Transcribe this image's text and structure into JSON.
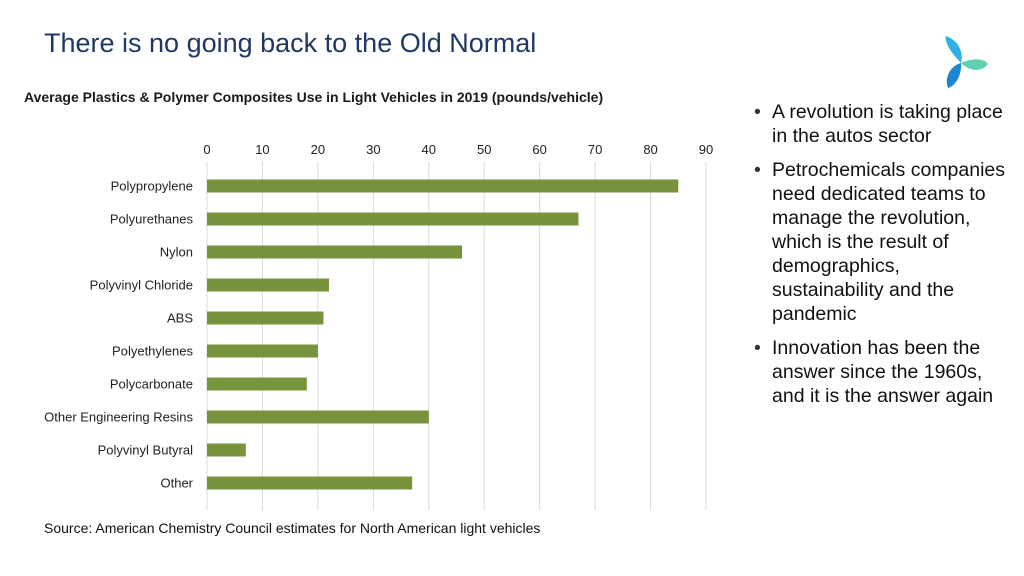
{
  "slide": {
    "title": "There is no going back to the Old Normal",
    "source": "Source: American Chemistry Council estimates for North American light vehicles"
  },
  "logo": {
    "icon": "tri-leaf-logo-icon",
    "colors": [
      "#2fb1e6",
      "#5fd0b0",
      "#1c86d1"
    ]
  },
  "bullets": [
    "A revolution is taking place in the autos sector",
    "Petrochemicals companies need dedicated teams to manage the revolution, which is the result of demographics, sustainability and the pandemic",
    "Innovation has been the answer since the 1960s, and it is the answer again"
  ],
  "chart_data": {
    "type": "bar",
    "orientation": "horizontal",
    "title": "Average Plastics & Polymer Composites Use in Light Vehicles in 2019 (pounds/vehicle)",
    "categories": [
      "Polypropylene",
      "Polyurethanes",
      "Nylon",
      "Polyvinyl Chloride",
      "ABS",
      "Polyethylenes",
      "Polycarbonate",
      "Other Engineering Resins",
      "Polyvinyl Butyral",
      "Other"
    ],
    "values": [
      85,
      67,
      46,
      22,
      21,
      20,
      18,
      40,
      7,
      37
    ],
    "xlim": [
      0,
      90
    ],
    "xticks": [
      0,
      10,
      20,
      30,
      40,
      50,
      60,
      70,
      80,
      90
    ],
    "xaxis_position": "top",
    "grid": "vertical",
    "bar_color": "#77933c",
    "grid_color": "#d9d9d9"
  }
}
